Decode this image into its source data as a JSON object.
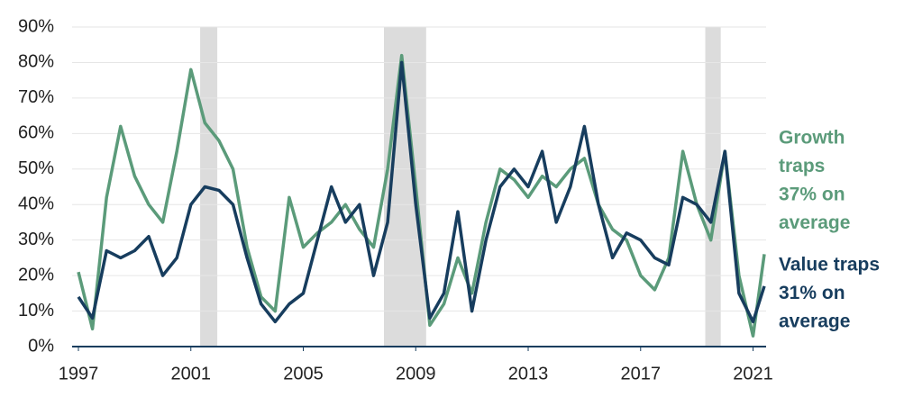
{
  "chart_data": {
    "type": "line",
    "x": [
      1997.0,
      1997.5,
      1998.0,
      1998.5,
      1999.0,
      1999.5,
      2000.0,
      2000.5,
      2001.0,
      2001.5,
      2002.0,
      2002.5,
      2003.0,
      2003.5,
      2004.0,
      2004.5,
      2005.0,
      2005.5,
      2006.0,
      2006.5,
      2007.0,
      2007.5,
      2008.0,
      2008.5,
      2009.0,
      2009.5,
      2010.0,
      2010.5,
      2011.0,
      2011.5,
      2012.0,
      2012.5,
      2013.0,
      2013.5,
      2014.0,
      2014.5,
      2015.0,
      2015.5,
      2016.0,
      2016.5,
      2017.0,
      2017.5,
      2018.0,
      2018.5,
      2019.0,
      2019.5,
      2020.0,
      2020.5,
      2021.0,
      2021.4
    ],
    "series": [
      {
        "name": "Growth traps",
        "color": "#5b9b7a",
        "values": [
          21,
          5,
          42,
          62,
          48,
          40,
          35,
          55,
          78,
          63,
          58,
          50,
          28,
          14,
          10,
          42,
          28,
          32,
          35,
          40,
          33,
          28,
          50,
          82,
          45,
          6,
          12,
          25,
          15,
          35,
          50,
          47,
          42,
          48,
          45,
          50,
          53,
          40,
          33,
          30,
          20,
          16,
          25,
          55,
          40,
          30,
          55,
          20,
          3,
          26
        ]
      },
      {
        "name": "Value traps",
        "color": "#173d5e",
        "values": [
          14,
          8,
          27,
          25,
          27,
          31,
          20,
          25,
          40,
          45,
          44,
          40,
          25,
          12,
          7,
          12,
          15,
          30,
          45,
          35,
          40,
          20,
          35,
          80,
          40,
          8,
          15,
          38,
          10,
          30,
          45,
          50,
          45,
          55,
          35,
          45,
          62,
          40,
          25,
          32,
          30,
          25,
          23,
          42,
          40,
          35,
          55,
          15,
          7,
          17
        ]
      }
    ],
    "annotations": [
      {
        "lines": [
          "Growth",
          "traps",
          "37% on",
          "average"
        ],
        "color": "#5b9b7a"
      },
      {
        "lines": [
          "Value traps",
          "31% on",
          "average"
        ],
        "color": "#173d5e"
      }
    ],
    "shaded_ranges": [
      [
        2001.33,
        2001.94
      ],
      [
        2007.87,
        2009.37
      ],
      [
        2019.3,
        2019.85
      ]
    ],
    "shade_color": "#dcdcdc",
    "xlim": [
      1997,
      2021.4
    ],
    "xticks": [
      1997,
      2001,
      2005,
      2009,
      2013,
      2017,
      2021
    ],
    "ylim": [
      0,
      90
    ],
    "yticks": [
      {
        "value": 0,
        "label": "0%"
      },
      {
        "value": 10,
        "label": "10%"
      },
      {
        "value": 20,
        "label": "20%"
      },
      {
        "value": 30,
        "label": "30%"
      },
      {
        "value": 40,
        "label": "40%"
      },
      {
        "value": 50,
        "label": "50%"
      },
      {
        "value": 60,
        "label": "60%"
      },
      {
        "value": 70,
        "label": "70%"
      },
      {
        "value": 80,
        "label": "80%"
      },
      {
        "value": 90,
        "label": "90%"
      }
    ],
    "grid": true
  }
}
